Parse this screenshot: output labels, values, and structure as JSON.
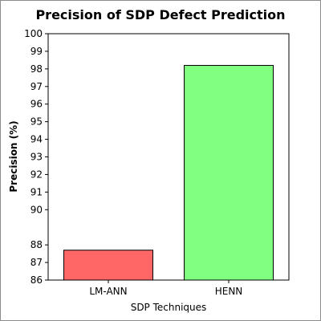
{
  "chart_data": {
    "type": "bar",
    "title": "Precision of SDP Defect Prediction",
    "xlabel": "SDP Techniques",
    "ylabel": "Precision (%)",
    "categories": [
      "LM-ANN",
      "HENN"
    ],
    "values": [
      87.7,
      98.2
    ],
    "ylim": [
      86,
      100
    ],
    "yticks": [
      86,
      87,
      88,
      90,
      91,
      92,
      93,
      94,
      95,
      96,
      97,
      98,
      99,
      100
    ],
    "bar_colors": [
      "#ff6666",
      "#80ff80"
    ],
    "grid": false,
    "legend": "none"
  }
}
